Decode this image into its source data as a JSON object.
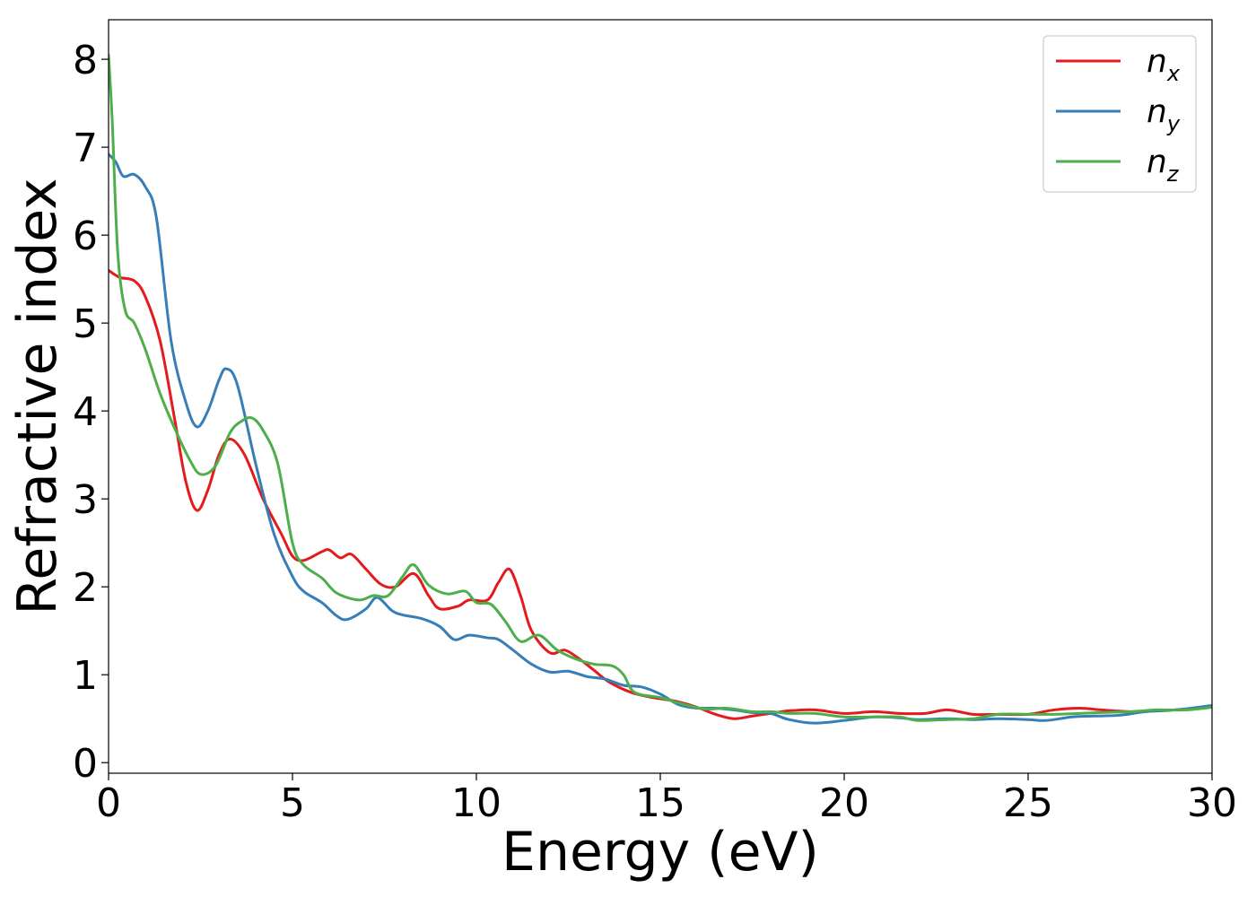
{
  "chart_data": {
    "type": "line",
    "xlabel": "Energy (eV)",
    "ylabel": "Refractive index",
    "xlim": [
      0,
      30
    ],
    "ylim": [
      -0.12,
      8.45
    ],
    "xticks": [
      "0",
      "5",
      "10",
      "15",
      "20",
      "25",
      "30"
    ],
    "yticks": [
      "0",
      "1",
      "2",
      "3",
      "4",
      "5",
      "6",
      "7",
      "8"
    ],
    "grid": false,
    "legend_position": "top-right",
    "series": [
      {
        "name": "n",
        "subscript": "x",
        "color": "#e41a1c",
        "points": [
          [
            0,
            5.6
          ],
          [
            0.3,
            5.52
          ],
          [
            0.7,
            5.48
          ],
          [
            1.0,
            5.3
          ],
          [
            1.4,
            4.8
          ],
          [
            1.8,
            3.9
          ],
          [
            2.1,
            3.2
          ],
          [
            2.4,
            2.87
          ],
          [
            2.7,
            3.1
          ],
          [
            3.0,
            3.5
          ],
          [
            3.3,
            3.68
          ],
          [
            3.7,
            3.5
          ],
          [
            4.2,
            3.0
          ],
          [
            4.7,
            2.6
          ],
          [
            5.0,
            2.35
          ],
          [
            5.3,
            2.3
          ],
          [
            5.8,
            2.4
          ],
          [
            6.0,
            2.42
          ],
          [
            6.3,
            2.33
          ],
          [
            6.6,
            2.37
          ],
          [
            7.0,
            2.2
          ],
          [
            7.4,
            2.03
          ],
          [
            7.8,
            2.0
          ],
          [
            8.3,
            2.15
          ],
          [
            8.7,
            1.9
          ],
          [
            9.0,
            1.75
          ],
          [
            9.5,
            1.78
          ],
          [
            9.8,
            1.85
          ],
          [
            10.3,
            1.85
          ],
          [
            10.6,
            2.05
          ],
          [
            10.9,
            2.2
          ],
          [
            11.2,
            1.9
          ],
          [
            11.5,
            1.5
          ],
          [
            12.0,
            1.25
          ],
          [
            12.4,
            1.28
          ],
          [
            12.8,
            1.18
          ],
          [
            13.2,
            1.05
          ],
          [
            13.6,
            0.92
          ],
          [
            14.2,
            0.8
          ],
          [
            14.8,
            0.74
          ],
          [
            15.4,
            0.7
          ],
          [
            16.0,
            0.63
          ],
          [
            16.5,
            0.55
          ],
          [
            17.0,
            0.5
          ],
          [
            17.5,
            0.53
          ],
          [
            18.0,
            0.56
          ],
          [
            18.5,
            0.59
          ],
          [
            19.2,
            0.6
          ],
          [
            20.0,
            0.56
          ],
          [
            20.8,
            0.58
          ],
          [
            21.5,
            0.56
          ],
          [
            22.2,
            0.56
          ],
          [
            22.8,
            0.6
          ],
          [
            23.5,
            0.55
          ],
          [
            24.2,
            0.55
          ],
          [
            25.0,
            0.55
          ],
          [
            25.7,
            0.6
          ],
          [
            26.4,
            0.62
          ],
          [
            27.0,
            0.6
          ],
          [
            27.8,
            0.58
          ],
          [
            28.5,
            0.59
          ],
          [
            29.3,
            0.61
          ],
          [
            30,
            0.64
          ]
        ]
      },
      {
        "name": "n",
        "subscript": "y",
        "color": "#377eb8",
        "points": [
          [
            0,
            6.92
          ],
          [
            0.2,
            6.83
          ],
          [
            0.4,
            6.67
          ],
          [
            0.7,
            6.69
          ],
          [
            1.0,
            6.55
          ],
          [
            1.3,
            6.2
          ],
          [
            1.7,
            4.8
          ],
          [
            2.1,
            4.1
          ],
          [
            2.4,
            3.82
          ],
          [
            2.7,
            4.0
          ],
          [
            3.0,
            4.35
          ],
          [
            3.2,
            4.48
          ],
          [
            3.5,
            4.3
          ],
          [
            4.0,
            3.4
          ],
          [
            4.5,
            2.6
          ],
          [
            5.0,
            2.12
          ],
          [
            5.3,
            1.95
          ],
          [
            5.8,
            1.82
          ],
          [
            6.2,
            1.67
          ],
          [
            6.5,
            1.63
          ],
          [
            7.0,
            1.75
          ],
          [
            7.3,
            1.88
          ],
          [
            7.7,
            1.73
          ],
          [
            8.0,
            1.68
          ],
          [
            8.5,
            1.64
          ],
          [
            9.0,
            1.55
          ],
          [
            9.4,
            1.4
          ],
          [
            9.8,
            1.45
          ],
          [
            10.3,
            1.42
          ],
          [
            10.6,
            1.4
          ],
          [
            11.0,
            1.28
          ],
          [
            11.5,
            1.12
          ],
          [
            12.0,
            1.03
          ],
          [
            12.5,
            1.04
          ],
          [
            13.0,
            0.98
          ],
          [
            13.5,
            0.95
          ],
          [
            14.0,
            0.88
          ],
          [
            14.5,
            0.86
          ],
          [
            15.0,
            0.78
          ],
          [
            15.5,
            0.66
          ],
          [
            16.0,
            0.62
          ],
          [
            16.5,
            0.62
          ],
          [
            17.0,
            0.6
          ],
          [
            17.5,
            0.57
          ],
          [
            18.0,
            0.56
          ],
          [
            18.5,
            0.49
          ],
          [
            19.2,
            0.45
          ],
          [
            20.0,
            0.48
          ],
          [
            20.8,
            0.52
          ],
          [
            21.5,
            0.51
          ],
          [
            22.0,
            0.49
          ],
          [
            22.8,
            0.5
          ],
          [
            23.5,
            0.49
          ],
          [
            24.2,
            0.5
          ],
          [
            25.0,
            0.49
          ],
          [
            25.5,
            0.48
          ],
          [
            26.2,
            0.52
          ],
          [
            26.8,
            0.53
          ],
          [
            27.5,
            0.54
          ],
          [
            28.2,
            0.58
          ],
          [
            29.0,
            0.6
          ],
          [
            30,
            0.65
          ]
        ]
      },
      {
        "name": "n",
        "subscript": "z",
        "color": "#4daf4a",
        "points": [
          [
            0,
            8.05
          ],
          [
            0.1,
            7.3
          ],
          [
            0.25,
            5.8
          ],
          [
            0.45,
            5.15
          ],
          [
            0.7,
            5.0
          ],
          [
            1.0,
            4.7
          ],
          [
            1.4,
            4.2
          ],
          [
            1.8,
            3.8
          ],
          [
            2.2,
            3.45
          ],
          [
            2.5,
            3.28
          ],
          [
            2.9,
            3.37
          ],
          [
            3.3,
            3.75
          ],
          [
            3.6,
            3.88
          ],
          [
            3.9,
            3.92
          ],
          [
            4.2,
            3.78
          ],
          [
            4.6,
            3.4
          ],
          [
            5.0,
            2.5
          ],
          [
            5.3,
            2.25
          ],
          [
            5.8,
            2.1
          ],
          [
            6.2,
            1.93
          ],
          [
            6.8,
            1.85
          ],
          [
            7.2,
            1.9
          ],
          [
            7.6,
            1.9
          ],
          [
            8.0,
            2.12
          ],
          [
            8.3,
            2.25
          ],
          [
            8.7,
            2.02
          ],
          [
            9.2,
            1.92
          ],
          [
            9.7,
            1.95
          ],
          [
            10.0,
            1.82
          ],
          [
            10.4,
            1.8
          ],
          [
            10.8,
            1.6
          ],
          [
            11.2,
            1.38
          ],
          [
            11.7,
            1.45
          ],
          [
            12.2,
            1.28
          ],
          [
            12.7,
            1.18
          ],
          [
            13.2,
            1.12
          ],
          [
            13.7,
            1.1
          ],
          [
            14.0,
            1.0
          ],
          [
            14.3,
            0.8
          ],
          [
            15.0,
            0.74
          ],
          [
            15.5,
            0.68
          ],
          [
            16.2,
            0.61
          ],
          [
            16.8,
            0.62
          ],
          [
            17.5,
            0.58
          ],
          [
            18.0,
            0.58
          ],
          [
            18.5,
            0.56
          ],
          [
            19.2,
            0.56
          ],
          [
            20.0,
            0.52
          ],
          [
            20.8,
            0.52
          ],
          [
            21.5,
            0.52
          ],
          [
            22.0,
            0.48
          ],
          [
            22.8,
            0.49
          ],
          [
            23.5,
            0.5
          ],
          [
            24.2,
            0.55
          ],
          [
            25.0,
            0.55
          ],
          [
            25.7,
            0.55
          ],
          [
            26.4,
            0.56
          ],
          [
            27.0,
            0.57
          ],
          [
            27.8,
            0.58
          ],
          [
            28.5,
            0.6
          ],
          [
            29.3,
            0.6
          ],
          [
            30,
            0.63
          ]
        ]
      }
    ]
  }
}
